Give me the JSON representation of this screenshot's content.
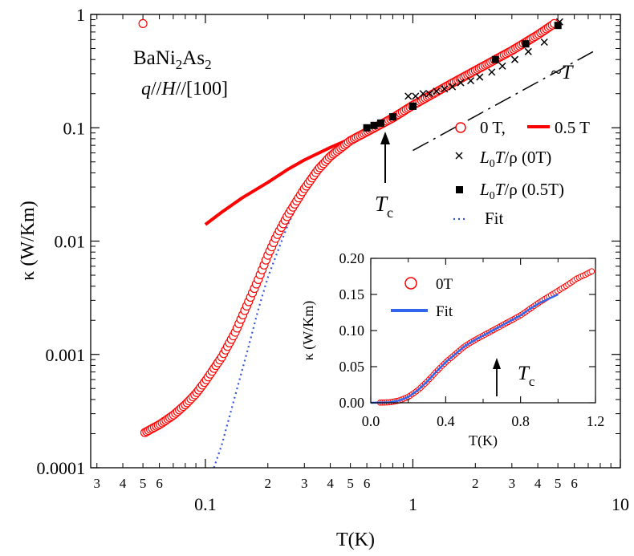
{
  "chart_data": [
    {
      "type": "scatter",
      "role": "main",
      "scale": "log-log",
      "xlabel": "T(K)",
      "ylabel": "κ (W/Km)",
      "xlim": [
        0.028,
        10
      ],
      "ylim": [
        0.0001,
        1
      ],
      "x_major_ticks": [
        {
          "value": 0.1,
          "label": "0.1"
        },
        {
          "value": 1,
          "label": "1"
        },
        {
          "value": 10,
          "label": "10"
        }
      ],
      "x_minor_ticks": [
        {
          "value": 0.03,
          "label": "3"
        },
        {
          "value": 0.04,
          "label": "4"
        },
        {
          "value": 0.05,
          "label": "5"
        },
        {
          "value": 0.06,
          "label": "6"
        },
        {
          "value": 0.07,
          "label": ""
        },
        {
          "value": 0.08,
          "label": ""
        },
        {
          "value": 0.09,
          "label": ""
        },
        {
          "value": 0.2,
          "label": "2"
        },
        {
          "value": 0.3,
          "label": "3"
        },
        {
          "value": 0.4,
          "label": "4"
        },
        {
          "value": 0.5,
          "label": "5"
        },
        {
          "value": 0.6,
          "label": "6"
        },
        {
          "value": 0.7,
          "label": ""
        },
        {
          "value": 0.8,
          "label": ""
        },
        {
          "value": 0.9,
          "label": ""
        },
        {
          "value": 2,
          "label": "2"
        },
        {
          "value": 3,
          "label": "3"
        },
        {
          "value": 4,
          "label": "4"
        },
        {
          "value": 5,
          "label": "5"
        },
        {
          "value": 6,
          "label": "6"
        },
        {
          "value": 7,
          "label": ""
        },
        {
          "value": 8,
          "label": ""
        },
        {
          "value": 9,
          "label": ""
        }
      ],
      "y_major_ticks": [
        {
          "value": 0.0001,
          "label": "0.0001"
        },
        {
          "value": 0.001,
          "label": "0.001"
        },
        {
          "value": 0.01,
          "label": "0.01"
        },
        {
          "value": 0.1,
          "label": "0.1"
        },
        {
          "value": 1,
          "label": "1"
        }
      ],
      "sample": {
        "base": "BaNi",
        "sub1": "2",
        "mid": "As",
        "sub2": "2"
      },
      "orientation": {
        "q": "q",
        "sep1": "//",
        "h": "H",
        "sep2": "//",
        "dir": "[100]"
      },
      "slope_label": "~T",
      "tc_label": {
        "main": "T",
        "sub": "c"
      },
      "legend": {
        "circle": "0 T,",
        "line05": "0.5 T",
        "cross": {
          "l": "L",
          "sub": "0",
          "t": "T",
          "rest": "/ρ (0T)"
        },
        "square": {
          "l": "L",
          "sub": "0",
          "t": "T",
          "rest": "/ρ (0.5T)"
        },
        "fit": "Fit"
      },
      "series": [
        {
          "name": "0 T",
          "marker": "open-circle",
          "color": "#ff0000",
          "curve": [
            [
              0.05,
              0.0002
            ],
            [
              0.055,
              0.00022
            ],
            [
              0.06,
              0.00024
            ],
            [
              0.07,
              0.00029
            ],
            [
              0.08,
              0.00036
            ],
            [
              0.09,
              0.00045
            ],
            [
              0.1,
              0.00058
            ],
            [
              0.12,
              0.00095
            ],
            [
              0.14,
              0.0016
            ],
            [
              0.16,
              0.0028
            ],
            [
              0.18,
              0.0046
            ],
            [
              0.2,
              0.0075
            ],
            [
              0.22,
              0.011
            ],
            [
              0.25,
              0.017
            ],
            [
              0.3,
              0.029
            ],
            [
              0.35,
              0.043
            ],
            [
              0.4,
              0.056
            ],
            [
              0.5,
              0.077
            ],
            [
              0.6,
              0.092
            ],
            [
              0.7,
              0.107
            ],
            [
              0.8,
              0.122
            ],
            [
              1.0,
              0.158
            ],
            [
              1.5,
              0.24
            ],
            [
              2.0,
              0.32
            ],
            [
              3.0,
              0.48
            ],
            [
              4.0,
              0.66
            ],
            [
              4.8,
              0.83
            ]
          ]
        },
        {
          "name": "0.5 T",
          "marker": "line",
          "color": "#ff0000",
          "points": [
            [
              0.1,
              0.014
            ],
            [
              0.12,
              0.018
            ],
            [
              0.15,
              0.024
            ],
            [
              0.2,
              0.033
            ],
            [
              0.25,
              0.043
            ],
            [
              0.3,
              0.052
            ],
            [
              0.4,
              0.067
            ],
            [
              0.5,
              0.08
            ],
            [
              0.6,
              0.092
            ],
            [
              0.7,
              0.106
            ],
            [
              0.8,
              0.12
            ],
            [
              1.0,
              0.155
            ],
            [
              1.5,
              0.238
            ],
            [
              2.0,
              0.315
            ],
            [
              3.0,
              0.48
            ],
            [
              4.0,
              0.65
            ],
            [
              4.8,
              0.83
            ]
          ]
        },
        {
          "name": "L0T/ρ (0T)",
          "marker": "cross",
          "color": "#000000",
          "points": [
            [
              0.95,
              0.19
            ],
            [
              1.03,
              0.19
            ],
            [
              1.12,
              0.2
            ],
            [
              1.2,
              0.2
            ],
            [
              1.3,
              0.21
            ],
            [
              1.42,
              0.22
            ],
            [
              1.55,
              0.23
            ],
            [
              1.7,
              0.25
            ],
            [
              1.9,
              0.26
            ],
            [
              2.1,
              0.28
            ],
            [
              2.4,
              0.31
            ],
            [
              2.7,
              0.35
            ],
            [
              3.1,
              0.4
            ],
            [
              3.6,
              0.47
            ],
            [
              4.3,
              0.57
            ],
            [
              5.1,
              0.86
            ]
          ]
        },
        {
          "name": "L0T/ρ (0.5T)",
          "marker": "filled-square",
          "color": "#000000",
          "points": [
            [
              0.6,
              0.1
            ],
            [
              0.65,
              0.105
            ],
            [
              0.7,
              0.11
            ],
            [
              0.8,
              0.125
            ],
            [
              1.0,
              0.155
            ],
            [
              2.5,
              0.4
            ],
            [
              3.5,
              0.55
            ],
            [
              5.0,
              0.8
            ]
          ]
        },
        {
          "name": "Fit",
          "marker": "dotted-line",
          "color": "#3355dd",
          "points": [
            [
              0.11,
              0.0001
            ],
            [
              0.12,
              0.00016
            ],
            [
              0.14,
              0.00045
            ],
            [
              0.16,
              0.0011
            ],
            [
              0.18,
              0.0025
            ],
            [
              0.2,
              0.0048
            ],
            [
              0.25,
              0.014
            ],
            [
              0.3,
              0.028
            ],
            [
              0.35,
              0.044
            ],
            [
              0.4,
              0.058
            ],
            [
              0.5,
              0.08
            ]
          ]
        },
        {
          "name": "~T guide",
          "marker": "dash-dot-line",
          "color": "#000000",
          "points": [
            [
              1.0,
              0.063
            ],
            [
              7.4,
              0.47
            ]
          ]
        }
      ],
      "annotations": [
        {
          "type": "arrow",
          "x": 0.68,
          "y_from": 0.04,
          "y_to": 0.1,
          "label": "Tc"
        }
      ]
    },
    {
      "type": "scatter",
      "role": "inset",
      "scale": "linear",
      "xlabel": "T(K)",
      "ylabel": "κ (W/Km)",
      "xlim": [
        0.0,
        1.2
      ],
      "ylim": [
        0.0,
        0.2
      ],
      "x_ticks": [
        {
          "value": 0.0,
          "label": "0.0"
        },
        {
          "value": 0.4,
          "label": "0.4"
        },
        {
          "value": 0.8,
          "label": "0.8"
        },
        {
          "value": 1.2,
          "label": "1.2"
        }
      ],
      "x_minor_ticks": [
        0.2,
        0.6,
        1.0
      ],
      "y_ticks": [
        {
          "value": 0.0,
          "label": "0.00"
        },
        {
          "value": 0.05,
          "label": "0.05"
        },
        {
          "value": 0.1,
          "label": "0.10"
        },
        {
          "value": 0.15,
          "label": "0.15"
        },
        {
          "value": 0.2,
          "label": "0.20"
        }
      ],
      "legend": {
        "circle": "0T",
        "fit": "Fit"
      },
      "tc_label": {
        "main": "T",
        "sub": "c"
      },
      "series": [
        {
          "name": "0T",
          "marker": "open-circle",
          "color": "#ff0000",
          "curve": [
            [
              0.05,
              0.0002
            ],
            [
              0.1,
              0.0006
            ],
            [
              0.15,
              0.003
            ],
            [
              0.2,
              0.008
            ],
            [
              0.25,
              0.017
            ],
            [
              0.3,
              0.029
            ],
            [
              0.35,
              0.043
            ],
            [
              0.4,
              0.056
            ],
            [
              0.45,
              0.067
            ],
            [
              0.5,
              0.078
            ],
            [
              0.55,
              0.086
            ],
            [
              0.6,
              0.093
            ],
            [
              0.65,
              0.1
            ],
            [
              0.7,
              0.107
            ],
            [
              0.75,
              0.114
            ],
            [
              0.8,
              0.121
            ],
            [
              0.85,
              0.13
            ],
            [
              0.9,
              0.139
            ],
            [
              0.95,
              0.147
            ],
            [
              1.0,
              0.155
            ],
            [
              1.05,
              0.163
            ],
            [
              1.1,
              0.172
            ],
            [
              1.15,
              0.178
            ],
            [
              1.18,
              0.182
            ]
          ]
        },
        {
          "name": "Fit",
          "marker": "line",
          "color": "#3366ee",
          "points": [
            [
              0.0,
              0.0
            ],
            [
              0.05,
              0.0002
            ],
            [
              0.1,
              0.0006
            ],
            [
              0.15,
              0.003
            ],
            [
              0.2,
              0.008
            ],
            [
              0.25,
              0.017
            ],
            [
              0.3,
              0.029
            ],
            [
              0.35,
              0.043
            ],
            [
              0.4,
              0.056
            ],
            [
              0.45,
              0.067
            ],
            [
              0.5,
              0.078
            ],
            [
              0.55,
              0.086
            ],
            [
              0.6,
              0.093
            ],
            [
              0.65,
              0.1
            ],
            [
              0.7,
              0.107
            ],
            [
              0.75,
              0.114
            ],
            [
              0.8,
              0.121
            ],
            [
              0.85,
              0.13
            ],
            [
              0.9,
              0.138
            ],
            [
              0.95,
              0.144
            ],
            [
              1.0,
              0.15
            ]
          ]
        }
      ],
      "annotations": [
        {
          "type": "arrow",
          "x": 0.68,
          "y_from": 0.06,
          "y_to": 0.095,
          "label": "Tc"
        }
      ]
    }
  ]
}
